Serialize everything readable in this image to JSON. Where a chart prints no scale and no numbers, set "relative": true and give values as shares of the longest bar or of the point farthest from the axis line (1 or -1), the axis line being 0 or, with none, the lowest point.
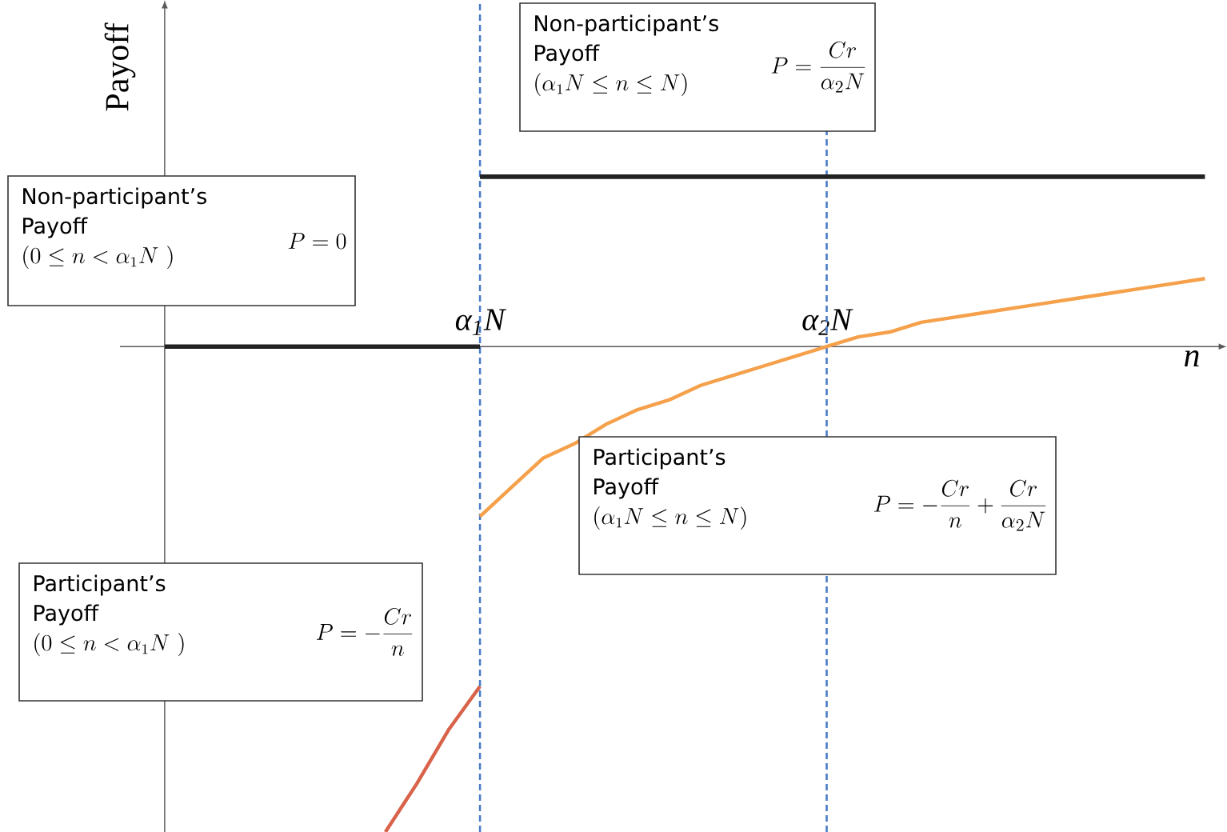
{
  "chart_data": {
    "type": "line",
    "relative": true,
    "xlabel": "n",
    "ylabel": "Payoff",
    "marker": "none",
    "line_style": "solid",
    "legend": false,
    "grid": false,
    "categories": [
      null,
      null,
      null,
      null,
      null,
      null,
      null,
      null,
      null,
      null,
      "α$_{1}$N",
      null,
      null,
      null,
      null,
      null,
      null,
      null,
      null,
      null,
      null,
      "α$_{2}$N",
      null,
      null,
      null,
      null,
      null,
      null,
      null,
      null,
      null,
      null,
      null,
      null
    ],
    "ref_lines": [
      {
        "axis": "x",
        "value": "α$_{1}$N",
        "color": "#4a7bc8",
        "line_style": "dashed"
      },
      {
        "axis": "x",
        "value": "α$_{2}$N",
        "color": "#4a7bc8",
        "line_style": "dashed"
      }
    ],
    "series": [
      {
        "color": "#222222",
        "values": [
          0,
          0,
          0,
          0,
          0,
          0,
          0,
          0,
          0,
          0,
          0,
          null,
          null,
          null,
          null,
          null,
          null,
          null,
          null,
          null,
          null,
          null,
          null,
          null,
          null,
          null,
          null,
          null,
          null,
          null,
          null,
          null,
          null,
          null
        ]
      },
      {
        "color": "#222222",
        "values": [
          null,
          null,
          null,
          null,
          null,
          null,
          null,
          null,
          null,
          null,
          0.35,
          0.35,
          0.35,
          0.35,
          0.35,
          0.35,
          0.35,
          0.35,
          0.35,
          0.35,
          0.35,
          0.35,
          0.35,
          0.35,
          0.35,
          0.35,
          0.35,
          0.35,
          0.35,
          0.35,
          0.35,
          0.35,
          0.35,
          0.35
        ]
      },
      {
        "color": "#f5a04a",
        "values": [
          null,
          null,
          null,
          null,
          null,
          null,
          null,
          null,
          null,
          null,
          -0.35,
          -0.29,
          -0.23,
          -0.2,
          -0.16,
          -0.13,
          -0.11,
          -0.08,
          -0.06,
          -0.04,
          -0.02,
          0,
          0.02,
          0.03,
          0.05,
          0.06,
          0.07,
          0.08,
          0.09,
          0.1,
          0.11,
          0.12,
          0.13,
          0.14
        ]
      },
      {
        "color": "#d9634a",
        "values": [
          null,
          null,
          null,
          null,
          null,
          null,
          null,
          -1,
          -0.9,
          -0.79,
          -0.7,
          null,
          null,
          null,
          null,
          null,
          null,
          null,
          null,
          null,
          null,
          null,
          null,
          null,
          null,
          null,
          null,
          null,
          null,
          null,
          null,
          null,
          null,
          null
        ]
      }
    ],
    "annotations": [
      "Non-participant’s Payoff",
      "(0\\le n<\\alpha_1 N\\ )",
      "P=0",
      "Non-participant’s Payoff",
      "(\\alpha_1 N\\le n\\le N)",
      "P=\\frac{Cr}{\\alpha_2 N}",
      "Participant’s Payoff",
      "(\\alpha_1 N\\le n\\le N)",
      "P=-\\frac{Cr}{n}+\\frac{Cr}{\\alpha_2 N}",
      "Participant’s Payoff",
      "(0\\le n<\\alpha_1 N\\ )",
      "P=-\\frac{Cr}{n}"
    ]
  }
}
